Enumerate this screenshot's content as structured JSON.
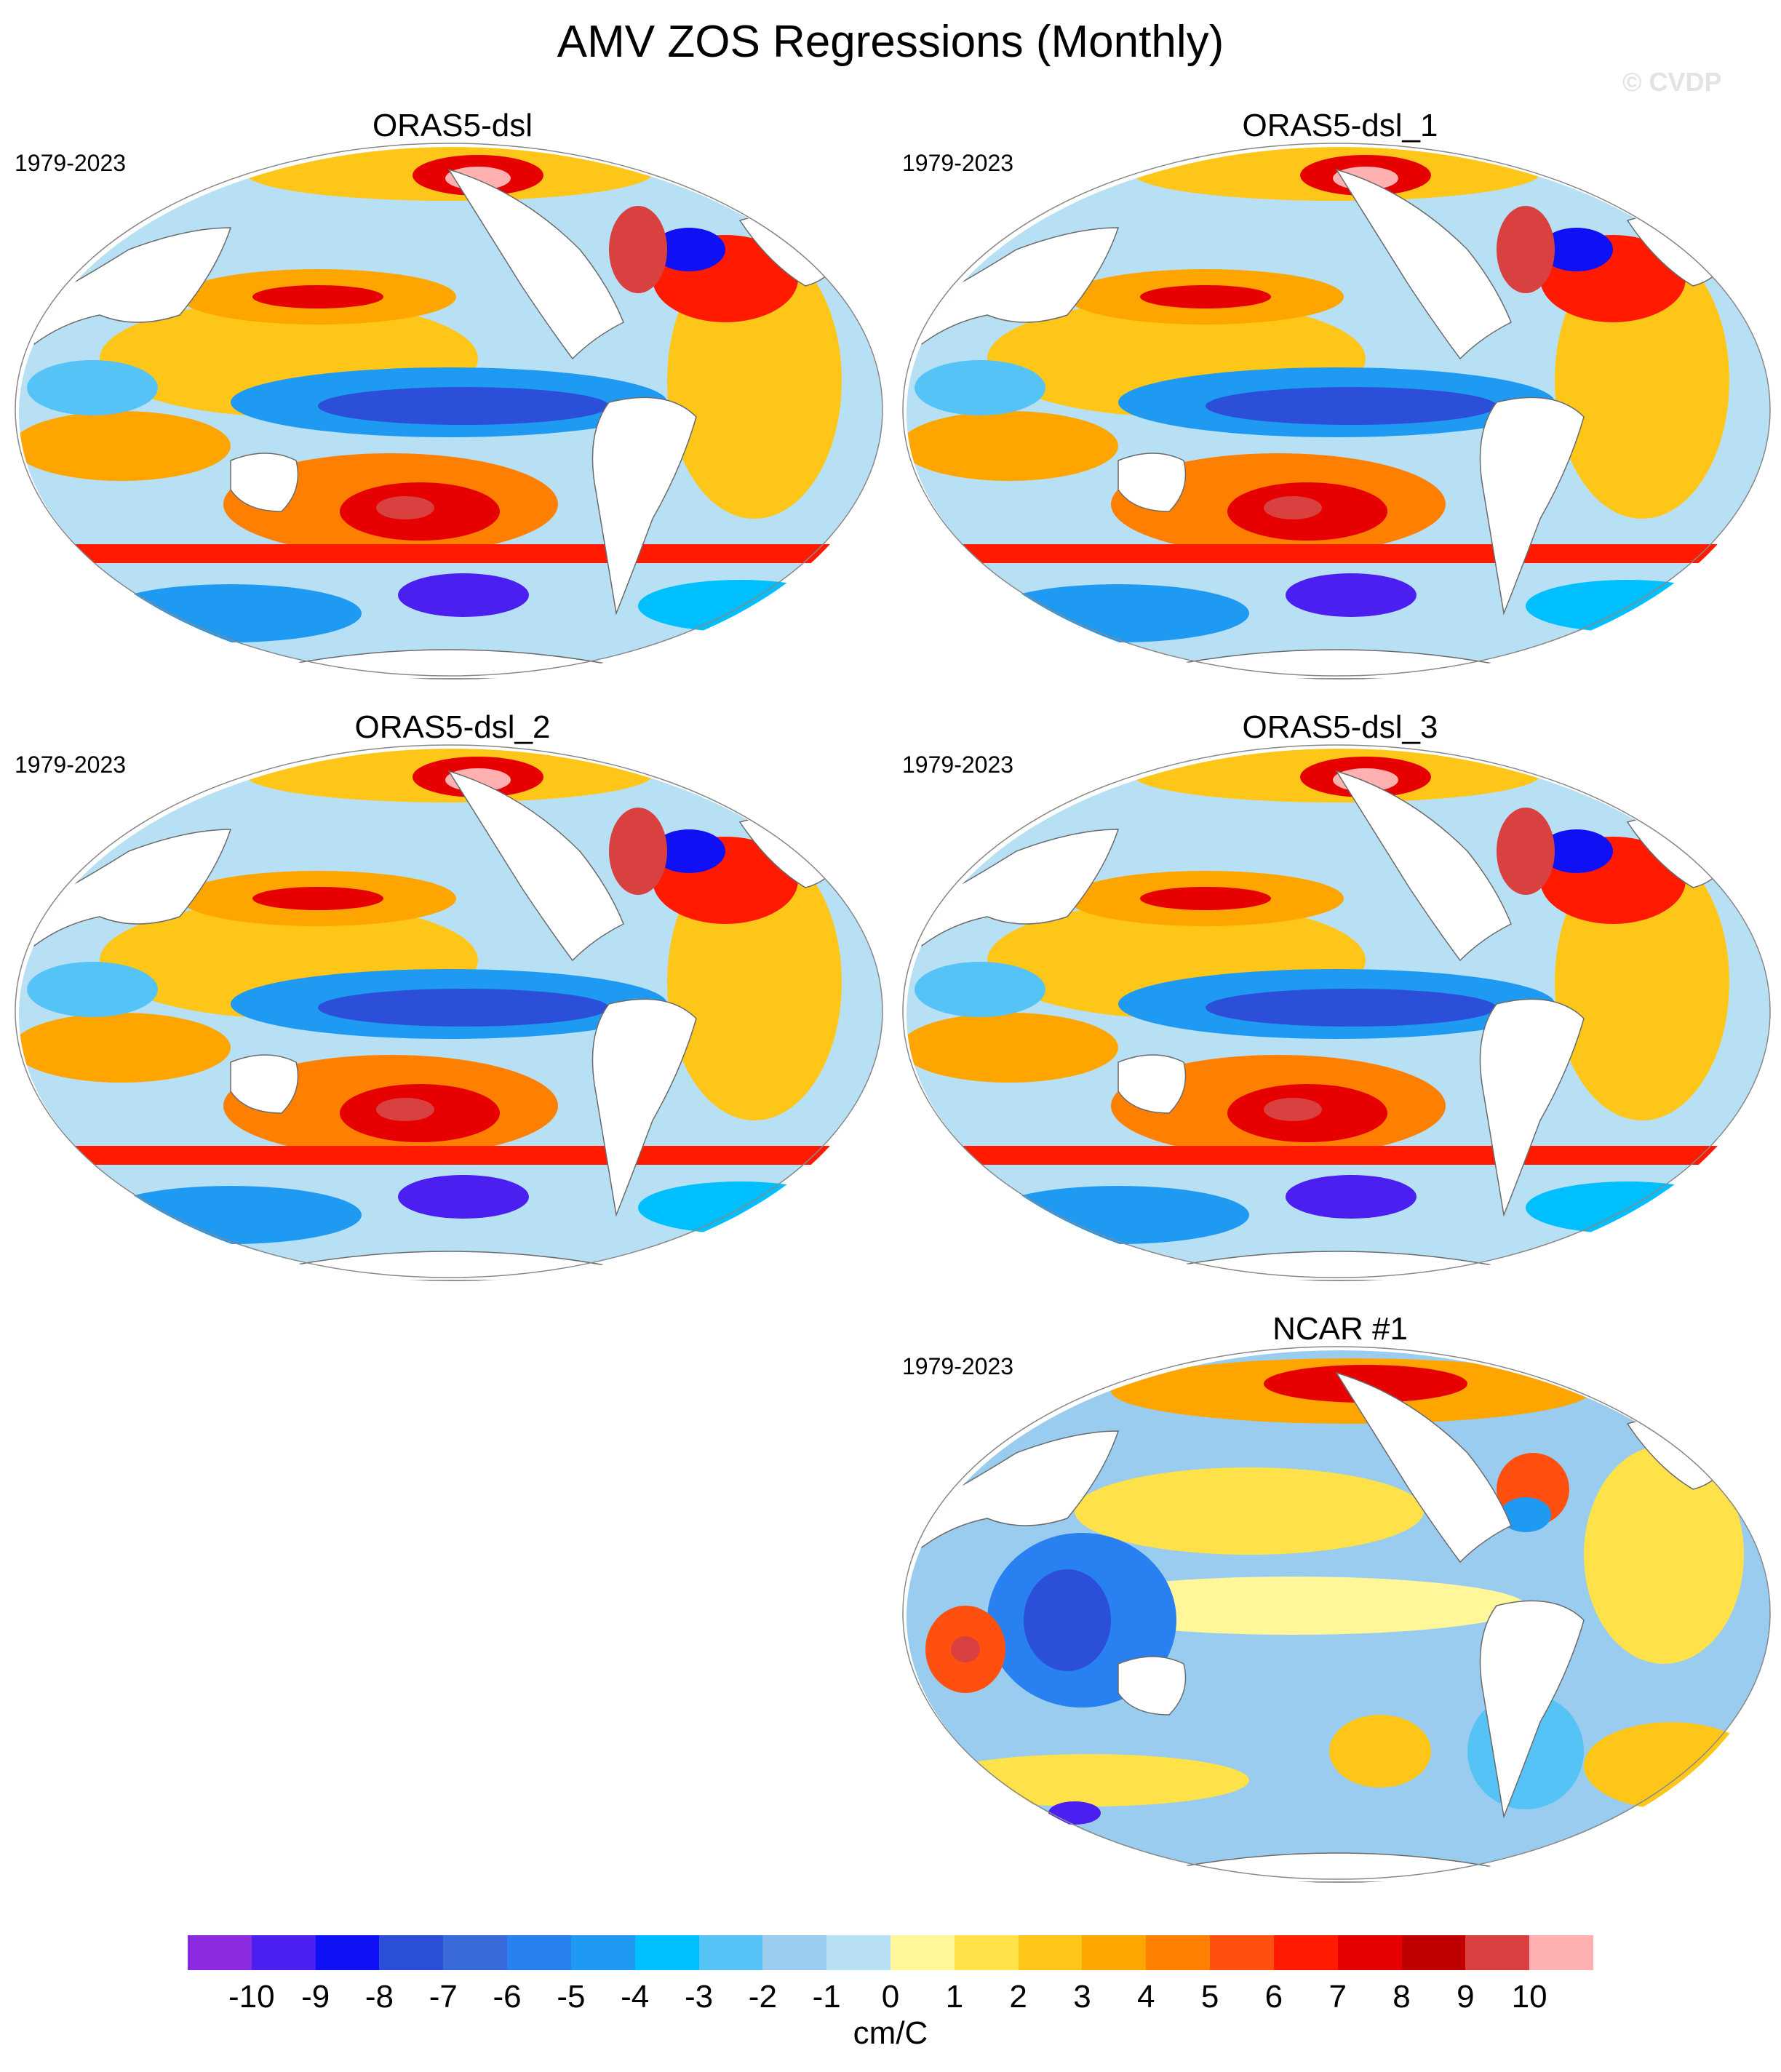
{
  "title": "AMV ZOS Regressions (Monthly)",
  "watermark": "© CVDP",
  "panels": [
    {
      "name": "ORAS5-dsl",
      "period": "1979-2023"
    },
    {
      "name": "ORAS5-dsl_1",
      "period": "1979-2023"
    },
    {
      "name": "ORAS5-dsl_2",
      "period": "1979-2023"
    },
    {
      "name": "ORAS5-dsl_3",
      "period": "1979-2023"
    },
    {
      "name": "NCAR #1",
      "period": "1979-2023"
    }
  ],
  "colorbar": {
    "units": "cm/C",
    "labels": [
      "-10",
      "-9",
      "-8",
      "-7",
      "-6",
      "-5",
      "-4",
      "-3",
      "-2",
      "-1",
      "0",
      "1",
      "2",
      "3",
      "4",
      "5",
      "6",
      "7",
      "8",
      "9",
      "10"
    ],
    "colors": [
      "#8a2be2",
      "#4a1ff0",
      "#1010f5",
      "#2b4fd8",
      "#3a6ad9",
      "#2980f0",
      "#1f9af2",
      "#00bfff",
      "#55c3f5",
      "#99ccee",
      "#b8e0f5",
      "#fff79a",
      "#ffe14a",
      "#ffc61a",
      "#ffa500",
      "#ff7f00",
      "#ff5010",
      "#ff1a00",
      "#e60000",
      "#c00000",
      "#d94040",
      "#ffb0b0"
    ]
  }
}
